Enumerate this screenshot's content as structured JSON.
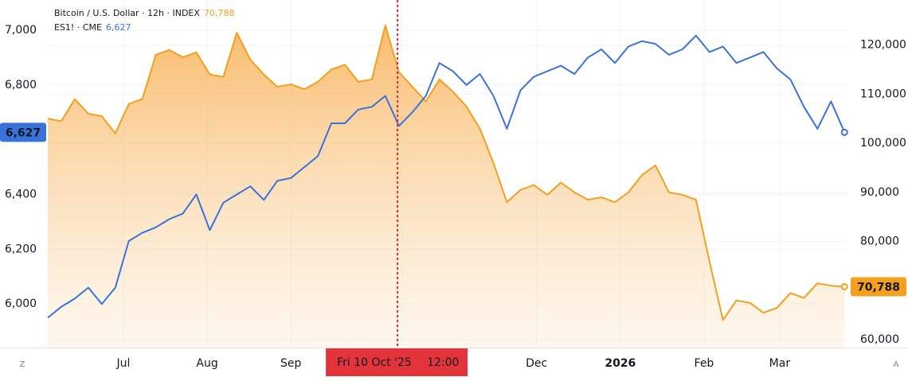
{
  "chart_data": {
    "type": "line",
    "legend": "top-left",
    "grid": true,
    "x": [
      -28,
      -23,
      -18,
      -13,
      -8,
      -3,
      2,
      7,
      12,
      17,
      22,
      27,
      32,
      37,
      42,
      47,
      52,
      57,
      62,
      67,
      72,
      77,
      82,
      87,
      92,
      97,
      102,
      107,
      112,
      117,
      122,
      127,
      132,
      137,
      142,
      147,
      152,
      157,
      162,
      167,
      172,
      177,
      182,
      187,
      192,
      197,
      202,
      207,
      212,
      217,
      222,
      227,
      232,
      237,
      242,
      247,
      252,
      257,
      262,
      267
    ],
    "xlim": [
      -28,
      268.4
    ],
    "xticks": [
      {
        "value": 0,
        "label": "Jul"
      },
      {
        "value": 31,
        "label": "Aug"
      },
      {
        "value": 62,
        "label": "Sep"
      },
      {
        "value": 153,
        "label": "Dec"
      },
      {
        "value": 184,
        "label": "2026"
      },
      {
        "value": 215,
        "label": "Feb"
      },
      {
        "value": 243,
        "label": "Mar"
      }
    ],
    "ylim": [
      5841,
      7110
    ],
    "yticks": [
      {
        "value": 6000,
        "label": "6,000"
      },
      {
        "value": 6200,
        "label": "6,200"
      },
      {
        "value": 6400,
        "label": "6,400"
      },
      {
        "value": 6800,
        "label": "6,800"
      },
      {
        "value": 7000,
        "label": "7,000"
      }
    ],
    "y2lim": [
      58400,
      129160
    ],
    "y2ticks": [
      {
        "value": 60000,
        "label": "60,000"
      },
      {
        "value": 80000,
        "label": "80,000"
      },
      {
        "value": 90000,
        "label": "90,000"
      },
      {
        "value": 100000,
        "label": "100,000"
      },
      {
        "value": 110000,
        "label": "110,000"
      },
      {
        "value": 120000,
        "label": "120,000"
      }
    ],
    "crosshair": {
      "value": 101.5,
      "label": "Fri 10 Oct '25",
      "time": "12:00"
    },
    "series": [
      {
        "name": "Bitcoin / U.S. Dollar · 12h · INDEX",
        "axis": "y2",
        "color": "#f59f1e",
        "area": true,
        "last_label": "70,788",
        "values": [
          105000,
          104500,
          109000,
          106000,
          105500,
          102000,
          108000,
          109000,
          118000,
          119000,
          117500,
          118500,
          114000,
          113500,
          122500,
          117000,
          114000,
          111500,
          112000,
          111000,
          112500,
          115000,
          116000,
          112500,
          113000,
          124000,
          114500,
          111500,
          108500,
          113000,
          110500,
          107500,
          103000,
          96000,
          88000,
          90500,
          91500,
          89500,
          92000,
          90000,
          88500,
          89000,
          88000,
          90000,
          93500,
          95500,
          90000,
          89500,
          88500,
          76000,
          64000,
          68000,
          67500,
          65500,
          66500,
          69500,
          68500,
          71500,
          71000,
          70788
        ]
      },
      {
        "name": "ES1! · CME",
        "color": "#3a72dc",
        "area": false,
        "last_label": "6,627",
        "values": [
          5950,
          5990,
          6020,
          6060,
          6000,
          6060,
          6230,
          6260,
          6280,
          6310,
          6330,
          6400,
          6270,
          6370,
          6400,
          6430,
          6380,
          6450,
          6460,
          6500,
          6540,
          6660,
          6660,
          6710,
          6720,
          6760,
          6650,
          6700,
          6760,
          6880,
          6850,
          6800,
          6840,
          6760,
          6640,
          6780,
          6830,
          6850,
          6870,
          6840,
          6900,
          6930,
          6880,
          6940,
          6960,
          6950,
          6910,
          6930,
          6980,
          6920,
          6940,
          6880,
          6900,
          6920,
          6860,
          6820,
          6720,
          6640,
          6740,
          6627
        ]
      }
    ],
    "buttons": [
      "Z",
      "A"
    ]
  }
}
